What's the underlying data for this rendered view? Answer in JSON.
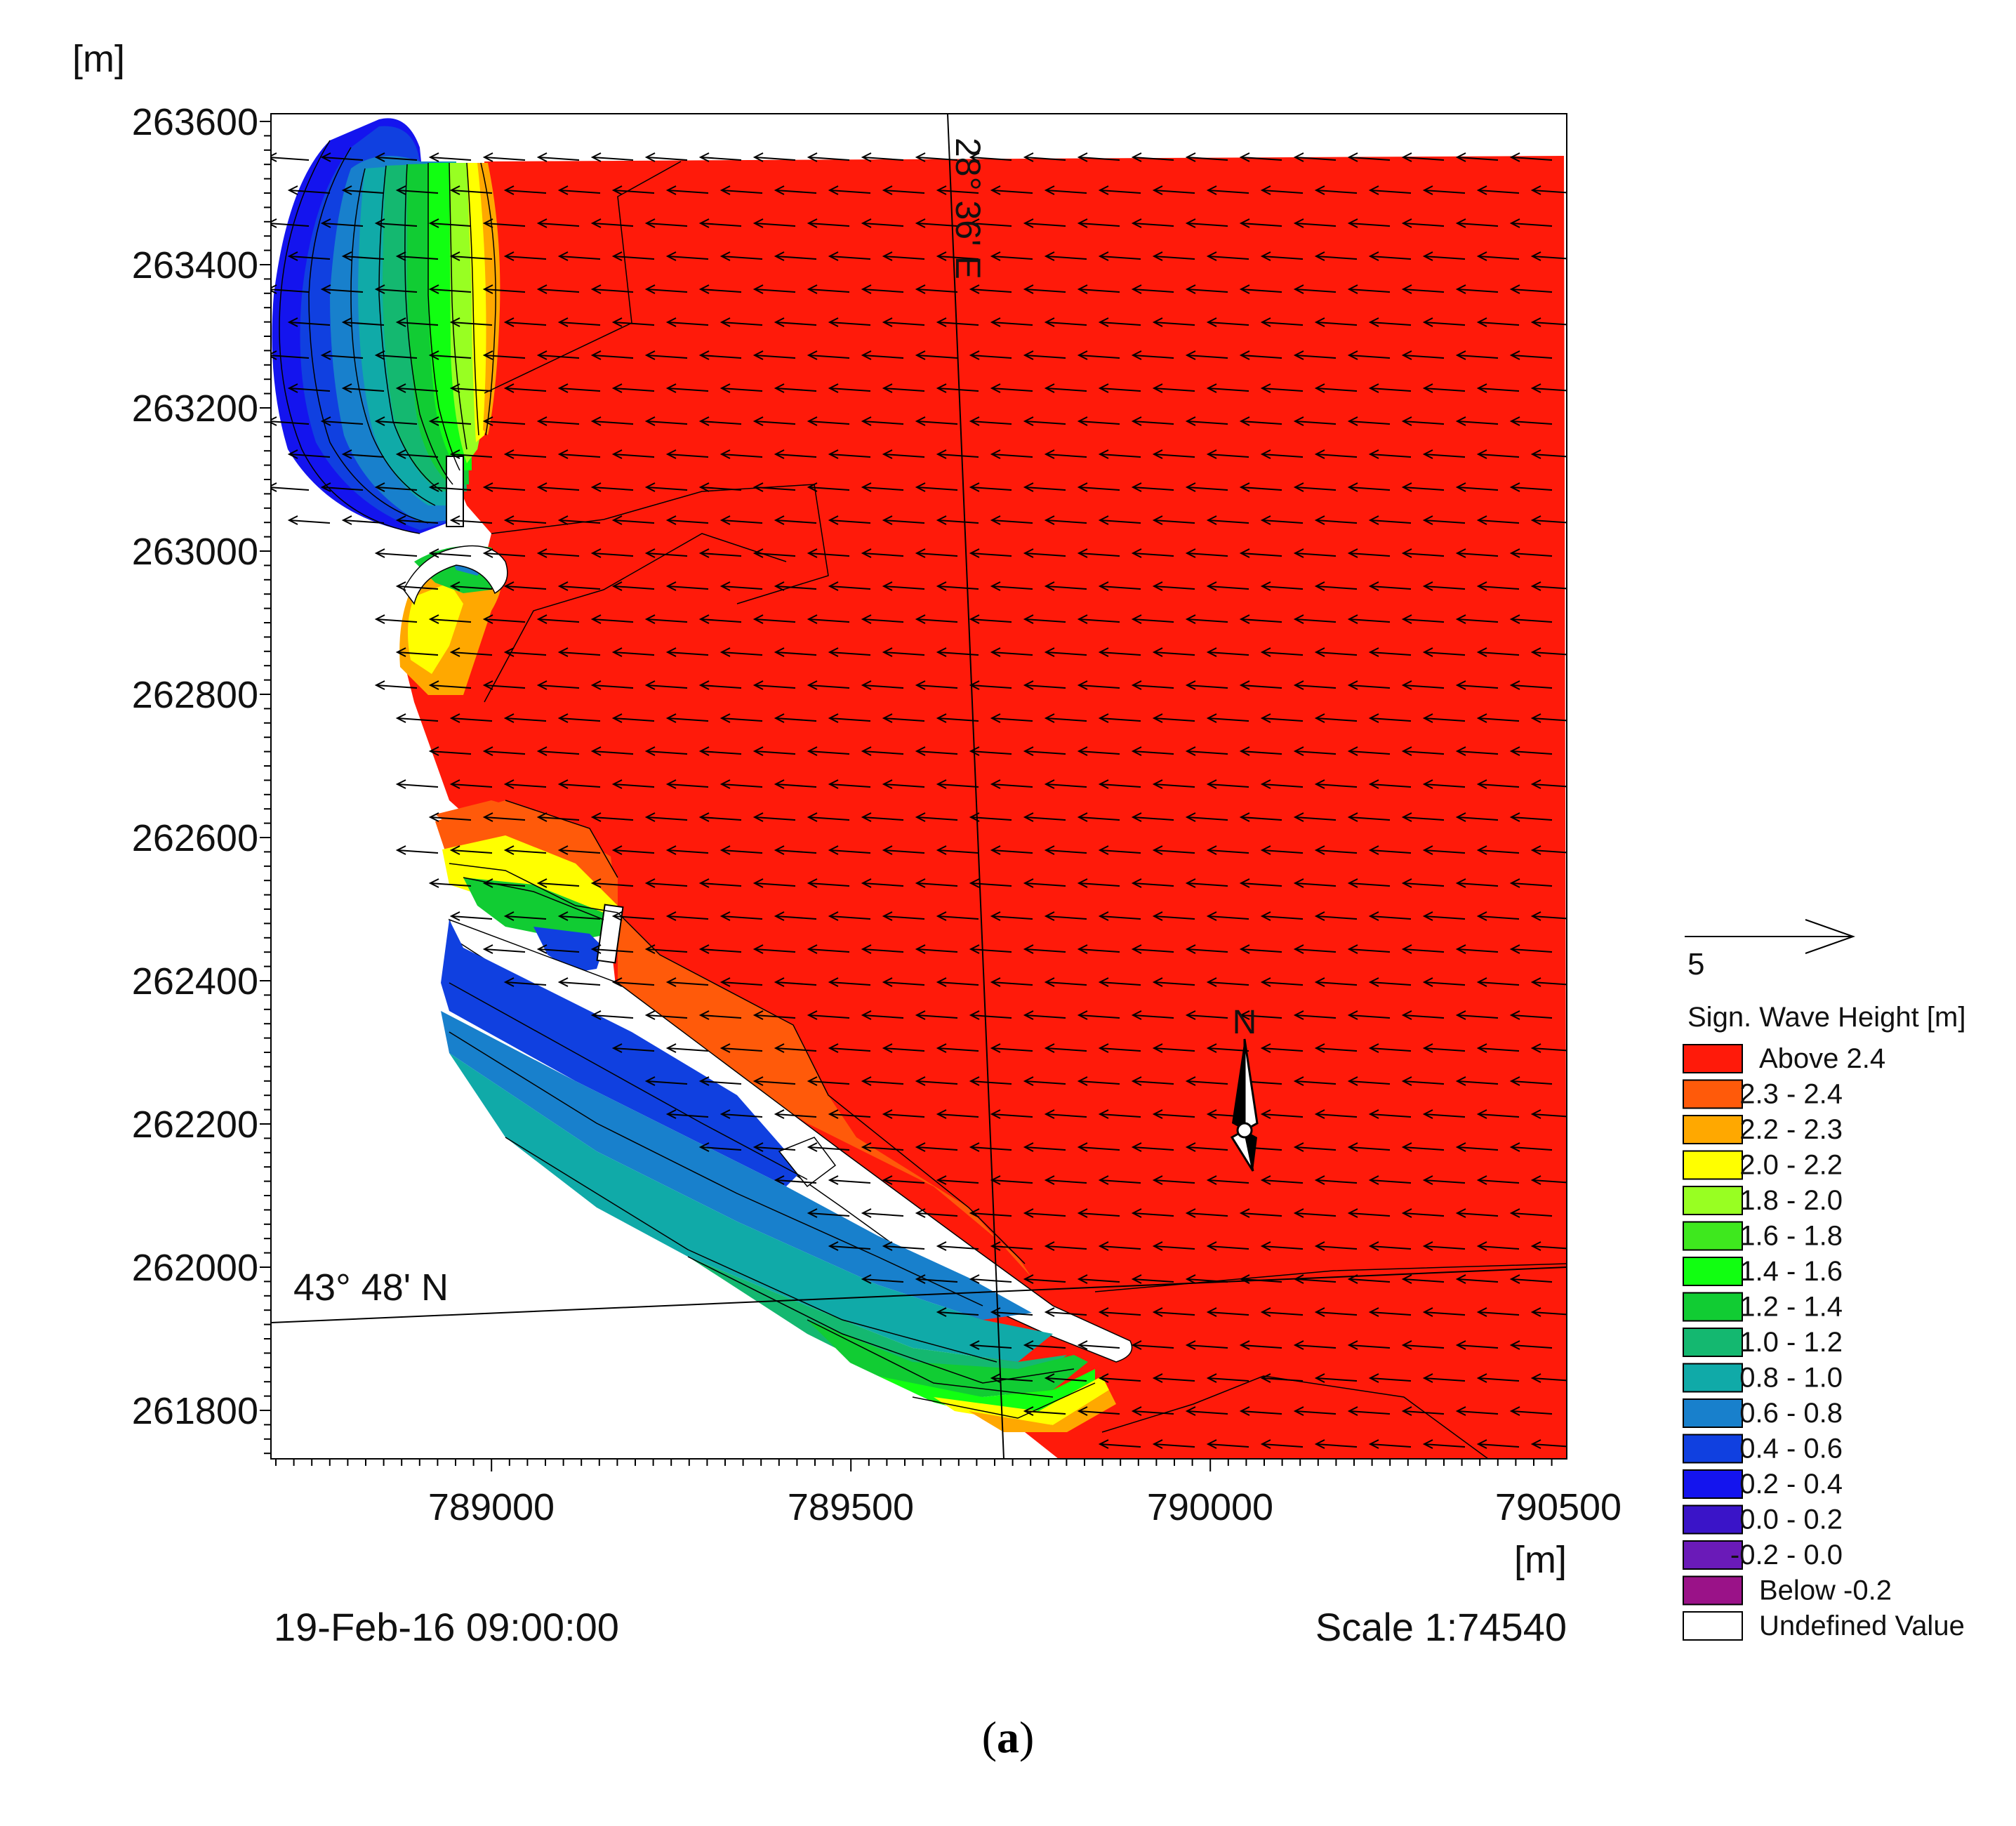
{
  "map": {
    "y_unit": "[m]",
    "x_unit": "[m]",
    "y_ticks": [
      "263600",
      "263400",
      "263200",
      "263000",
      "262800",
      "262600",
      "262400",
      "262200",
      "262000",
      "261800"
    ],
    "x_ticks": [
      "789000",
      "789500",
      "790000",
      "790500"
    ],
    "lat_label": "43° 48' N",
    "lon_label": "28° 36' E",
    "north_label": "N",
    "timestamp": "19-Feb-16 09:00:00",
    "scale": "Scale 1:74540"
  },
  "vector_legend": {
    "value": "5"
  },
  "legend": {
    "title": "Sign. Wave Height [m]",
    "items": [
      {
        "label": "Above  2.4",
        "color": "#ff1a0a"
      },
      {
        "label": "2.3 -  2.4",
        "color": "#ff5a0a"
      },
      {
        "label": "2.2 -  2.3",
        "color": "#ffa800"
      },
      {
        "label": "2.0 -  2.2",
        "color": "#ffff00"
      },
      {
        "label": "1.8 -  2.0",
        "color": "#98ff22"
      },
      {
        "label": "1.6 -  1.8",
        "color": "#3ee81e"
      },
      {
        "label": "1.4 -  1.6",
        "color": "#11ff11"
      },
      {
        "label": "1.2 -  1.4",
        "color": "#11cc33"
      },
      {
        "label": "1.0 -  1.2",
        "color": "#14b870"
      },
      {
        "label": "0.8 -  1.0",
        "color": "#10aaa8"
      },
      {
        "label": "0.6 -  0.8",
        "color": "#1880cc"
      },
      {
        "label": "0.4 -  0.6",
        "color": "#1040e0"
      },
      {
        "label": "0.2 -  0.4",
        "color": "#1414ee"
      },
      {
        "label": "0.0 -  0.2",
        "color": "#3a14c8"
      },
      {
        "label": "-0.2 -  0.0",
        "color": "#6a1ab8"
      },
      {
        "label": "Below -0.2",
        "color": "#9a1288"
      },
      {
        "label": "Undefined Value",
        "color": "#ffffff"
      }
    ]
  },
  "caption": {
    "open": "(",
    "letter": "a",
    "close": ")"
  }
}
